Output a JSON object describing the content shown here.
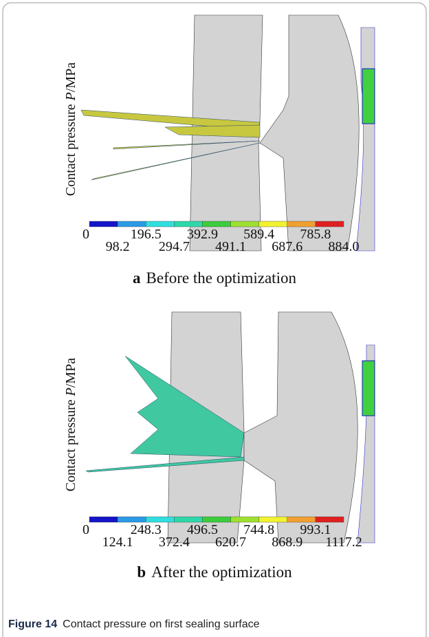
{
  "figure": {
    "label": "Figure 14",
    "caption": "Contact pressure on first sealing surface"
  },
  "panels": [
    {
      "letter": "a",
      "title": "Before the optimization",
      "axis_label": {
        "prefix": "Contact pressure ",
        "symbol": "P",
        "unit": "/MPa"
      },
      "scale_labels": [
        "0",
        "98.2",
        "196.5",
        "294.7",
        "392.9",
        "491.1",
        "589.4",
        "687.6",
        "785.8",
        "884.0"
      ]
    },
    {
      "letter": "b",
      "title": "After the optimization",
      "axis_label": {
        "prefix": "Contact pressure ",
        "symbol": "P",
        "unit": "/MPa"
      },
      "scale_labels": [
        "0",
        "124.1",
        "248.3",
        "372.4",
        "496.5",
        "620.7",
        "744.8",
        "868.9",
        "993.1",
        "1117.2"
      ]
    }
  ]
}
